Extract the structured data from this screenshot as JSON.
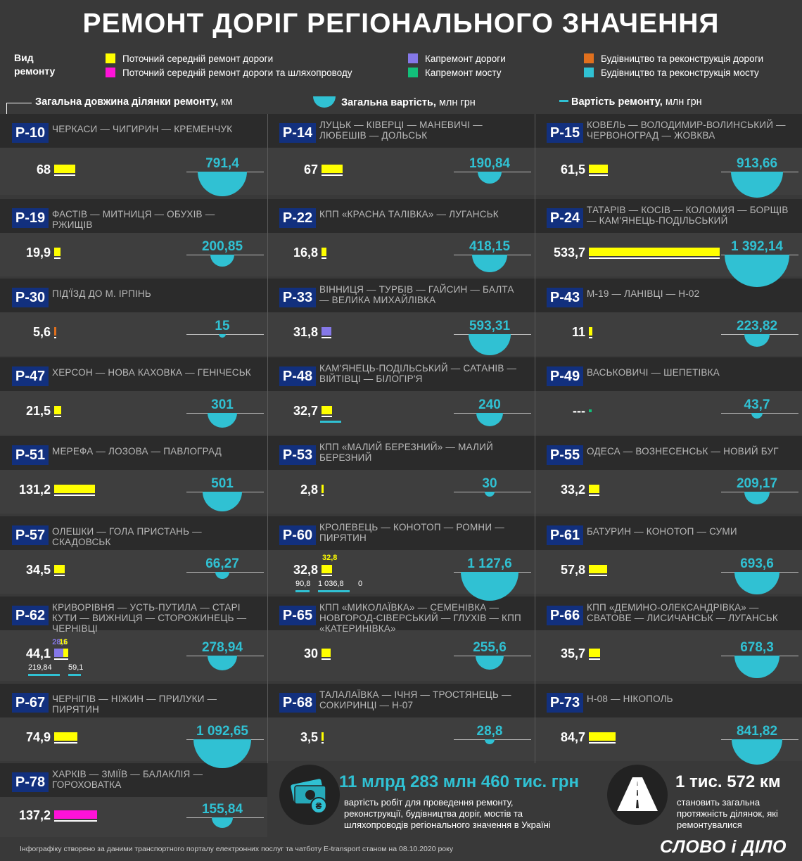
{
  "title": "РЕМОНТ ДОРІГ РЕГІОНАЛЬНОГО ЗНАЧЕННЯ",
  "legend": {
    "heading": "Вид ремонту",
    "items": [
      {
        "key": "current",
        "label": "Поточний середній ремонт дороги",
        "color": "#ffff00"
      },
      {
        "key": "current_overpass",
        "label": "Поточний середній ремонт дороги та шляхопроводу",
        "color": "#ff12d8"
      },
      {
        "key": "capital_road",
        "label": "Капремонт дороги",
        "color": "#8578e8"
      },
      {
        "key": "capital_bridge",
        "label": "Капремонт мосту",
        "color": "#12c07a"
      },
      {
        "key": "construct_road",
        "label": "Будівництво та реконструкція дороги",
        "color": "#e0701e"
      },
      {
        "key": "construct_bridge",
        "label": "Будівництво та реконструкція мосту",
        "color": "#30c1d3"
      }
    ]
  },
  "headers": {
    "length_bold": "Загальна довжина ділянки ремонту,",
    "length_unit": " км",
    "total_bold": "Загальна вартість,",
    "total_unit": " млн грн",
    "repair_bold": "Вартість ремонту,",
    "repair_unit": " млн грн"
  },
  "chart_data": {
    "type": "bar",
    "units": {
      "length": "км",
      "cost": "млн грн"
    },
    "roads": [
      {
        "code": "Р-10",
        "name": "ЧЕРКАСИ — ЧИГИРИН — КРЕМЕНЧУК",
        "length": 68,
        "length_label": "68",
        "cost": 791.4,
        "cost_label": "791,4",
        "type": "current"
      },
      {
        "code": "Р-14",
        "name": "ЛУЦЬК — КІВЕРЦІ — МАНЕВИЧІ — ЛЮБЕШІВ — ДОЛЬСЬК",
        "length": 67,
        "length_label": "67",
        "cost": 190.84,
        "cost_label": "190,84",
        "type": "current"
      },
      {
        "code": "Р-15",
        "name": "КОВЕЛЬ — ВОЛОДИМИР-ВОЛИНСЬКИЙ — ЧЕРВОНОГРАД — ЖОВКВА",
        "length": 61.5,
        "length_label": "61,5",
        "cost": 913.66,
        "cost_label": "913,66",
        "type": "current"
      },
      {
        "code": "Р-19",
        "name": "ФАСТІВ — МИТНИЦЯ — ОБУХІВ — РЖИЩІВ",
        "length": 19.9,
        "length_label": "19,9",
        "cost": 200.85,
        "cost_label": "200,85",
        "type": "current"
      },
      {
        "code": "Р-22",
        "name": "КПП «КРАСНА ТАЛІВКА» — ЛУГАНСЬК",
        "length": 16.8,
        "length_label": "16,8",
        "cost": 418.15,
        "cost_label": "418,15",
        "type": "current"
      },
      {
        "code": "Р-24",
        "name": "ТАТАРІВ — КОСІВ — КОЛОМИЯ — БОРЩІВ — КАМ'ЯНЕЦЬ-ПОДІЛЬСЬКИЙ",
        "length": 533.7,
        "length_label": "533,7",
        "cost": 1392.14,
        "cost_label": "1 392,14",
        "type": "current"
      },
      {
        "code": "Р-30",
        "name": "ПІД'ЇЗД ДО М. ІРПІНЬ",
        "length": 5.6,
        "length_label": "5,6",
        "cost": 15,
        "cost_label": "15",
        "type": "construct_road"
      },
      {
        "code": "Р-33",
        "name": "ВІННИЦЯ — ТУРБІВ — ГАЙСИН — БАЛТА — ВЕЛИКА МИХАЙЛІВКА",
        "length": 31.8,
        "length_label": "31,8",
        "cost": 593.31,
        "cost_label": "593,31",
        "type": "capital_road"
      },
      {
        "code": "Р-43",
        "name": "М-19 — ЛАНІВЦІ — Н-02",
        "length": 11,
        "length_label": "11",
        "cost": 223.82,
        "cost_label": "223,82",
        "type": "current"
      },
      {
        "code": "Р-47",
        "name": "ХЕРСОН — НОВА КАХОВКА — ГЕНІЧЕСЬК",
        "length": 21.5,
        "length_label": "21,5",
        "cost": 301,
        "cost_label": "301",
        "type": "current"
      },
      {
        "code": "Р-48",
        "name": "КАМ'ЯНЕЦЬ-ПОДІЛЬСЬКИЙ — САТАНІВ — ВІЙТІВЦІ — БІЛОГІР'Я",
        "length": 32.7,
        "length_label": "32,7",
        "cost": 240,
        "cost_label": "240",
        "type": "current",
        "extra_bridge": true
      },
      {
        "code": "Р-49",
        "name": "ВАСЬКОВИЧІ — ШЕПЕТІВКА",
        "length": null,
        "length_label": "---",
        "cost": 43.7,
        "cost_label": "43,7",
        "type": "capital_bridge"
      },
      {
        "code": "Р-51",
        "name": "МЕРЕФА — ЛОЗОВА — ПАВЛОГРАД",
        "length": 131.2,
        "length_label": "131,2",
        "cost": 501,
        "cost_label": "501",
        "type": "current"
      },
      {
        "code": "Р-53",
        "name": "КПП «МАЛИЙ БЕРЕЗНИЙ» — МАЛИЙ БЕРЕЗНИЙ",
        "length": 2.8,
        "length_label": "2,8",
        "cost": 30,
        "cost_label": "30",
        "type": "current"
      },
      {
        "code": "Р-55",
        "name": "ОДЕСА — ВОЗНЕСЕНСЬК — НОВИЙ БУГ",
        "length": 33.2,
        "length_label": "33,2",
        "cost": 209.17,
        "cost_label": "209,17",
        "type": "current"
      },
      {
        "code": "Р-57",
        "name": "ОЛЕШКИ — ГОЛА ПРИСТАНЬ — СКАДОВСЬК",
        "length": 34.5,
        "length_label": "34,5",
        "cost": 66.27,
        "cost_label": "66,27",
        "type": "current"
      },
      {
        "code": "Р-60",
        "name": "КРОЛЕВЕЦЬ — КОНОТОП — РОМНИ — ПИРЯТИН",
        "length": 32.8,
        "length_label": "32,8",
        "cost": 1127.6,
        "cost_label": "1 127,6",
        "type": "current",
        "segments": [
          {
            "type": "current",
            "length": 32.8,
            "length_label": "32,8"
          }
        ],
        "repair_costs": [
          {
            "value": 90.8,
            "label": "90,8"
          },
          {
            "value": 1036.8,
            "label": "1 036,8"
          },
          {
            "value": 0,
            "label": "0"
          }
        ]
      },
      {
        "code": "Р-61",
        "name": "БАТУРИН — КОНОТОП — СУМИ",
        "length": 57.8,
        "length_label": "57,8",
        "cost": 693.6,
        "cost_label": "693,6",
        "type": "current"
      },
      {
        "code": "Р-62",
        "name": "КРИВОРІВНЯ — УСТЬ-ПУТИЛА — СТАРІ КУТИ — ВИЖНИЦЯ — СТОРОЖИНЕЦЬ — ЧЕРНІВЦІ",
        "length": 44.1,
        "length_label": "44,1",
        "cost": 278.94,
        "cost_label": "278,94",
        "type": "mixed",
        "segments": [
          {
            "type": "capital_road",
            "length": 28.1,
            "length_label": "28,1"
          },
          {
            "type": "current",
            "length": 16,
            "length_label": "16"
          }
        ],
        "repair_costs": [
          {
            "value": 219.84,
            "label": "219,84"
          },
          {
            "value": 59.1,
            "label": "59,1"
          }
        ]
      },
      {
        "code": "Р-65",
        "name": "КПП «МИКОЛАЇВКА» — СЕМЕНІВКА — НОВГОРОД-СІВЕРСЬКИЙ — ГЛУХІВ — КПП «КАТЕРИНІВКА»",
        "length": 30,
        "length_label": "30",
        "cost": 255.6,
        "cost_label": "255,6",
        "type": "current"
      },
      {
        "code": "Р-66",
        "name": "КПП «ДЕМИНО-ОЛЕКСАНДРІВКА» — СВАТОВЕ — ЛИСИЧАНСЬК — ЛУГАНСЬК",
        "length": 35.7,
        "length_label": "35,7",
        "cost": 678.3,
        "cost_label": "678,3",
        "type": "current"
      },
      {
        "code": "Р-67",
        "name": "ЧЕРНІГІВ — НІЖИН — ПРИЛУКИ — ПИРЯТИН",
        "length": 74.9,
        "length_label": "74,9",
        "cost": 1092.65,
        "cost_label": "1 092,65",
        "type": "current"
      },
      {
        "code": "Р-68",
        "name": "ТАЛАЛАЇВКА — ІЧНЯ — ТРОСТЯНЕЦЬ — СОКИРИНЦІ — Н-07",
        "length": 3.5,
        "length_label": "3,5",
        "cost": 28.8,
        "cost_label": "28,8",
        "type": "current"
      },
      {
        "code": "Р-73",
        "name": "Н-08 — НІКОПОЛЬ",
        "length": 84.7,
        "length_label": "84,7",
        "cost": 841.82,
        "cost_label": "841,82",
        "type": "current"
      },
      {
        "code": "Р-78",
        "name": "ХАРКІВ — ЗМІЇВ — БАЛАКЛІЯ — ГОРОХОВАТКА",
        "length": 137.2,
        "length_label": "137,2",
        "cost": 155.84,
        "cost_label": "155,84",
        "type": "current_overpass"
      }
    ]
  },
  "totals": {
    "cost_big": "11 млрд 283 млн 460 тис. грн",
    "cost_sub": "вартість робіт для проведення ремонту, реконструкції, будівництва доріг, мостів та шляхопроводів регіонального значення в Україні",
    "length_big": "1 тис. 572 км",
    "length_sub": "становить загальна протяжність ділянок, які ремонтувалися",
    "money_icon": "money-icon",
    "road_icon": "road-icon"
  },
  "footer": "Інфографіку створено за даними транспортного порталу електронних послуг та чатботу E-transport станом на 08.10.2020 року",
  "logo": "СЛОВО і ДІЛО"
}
